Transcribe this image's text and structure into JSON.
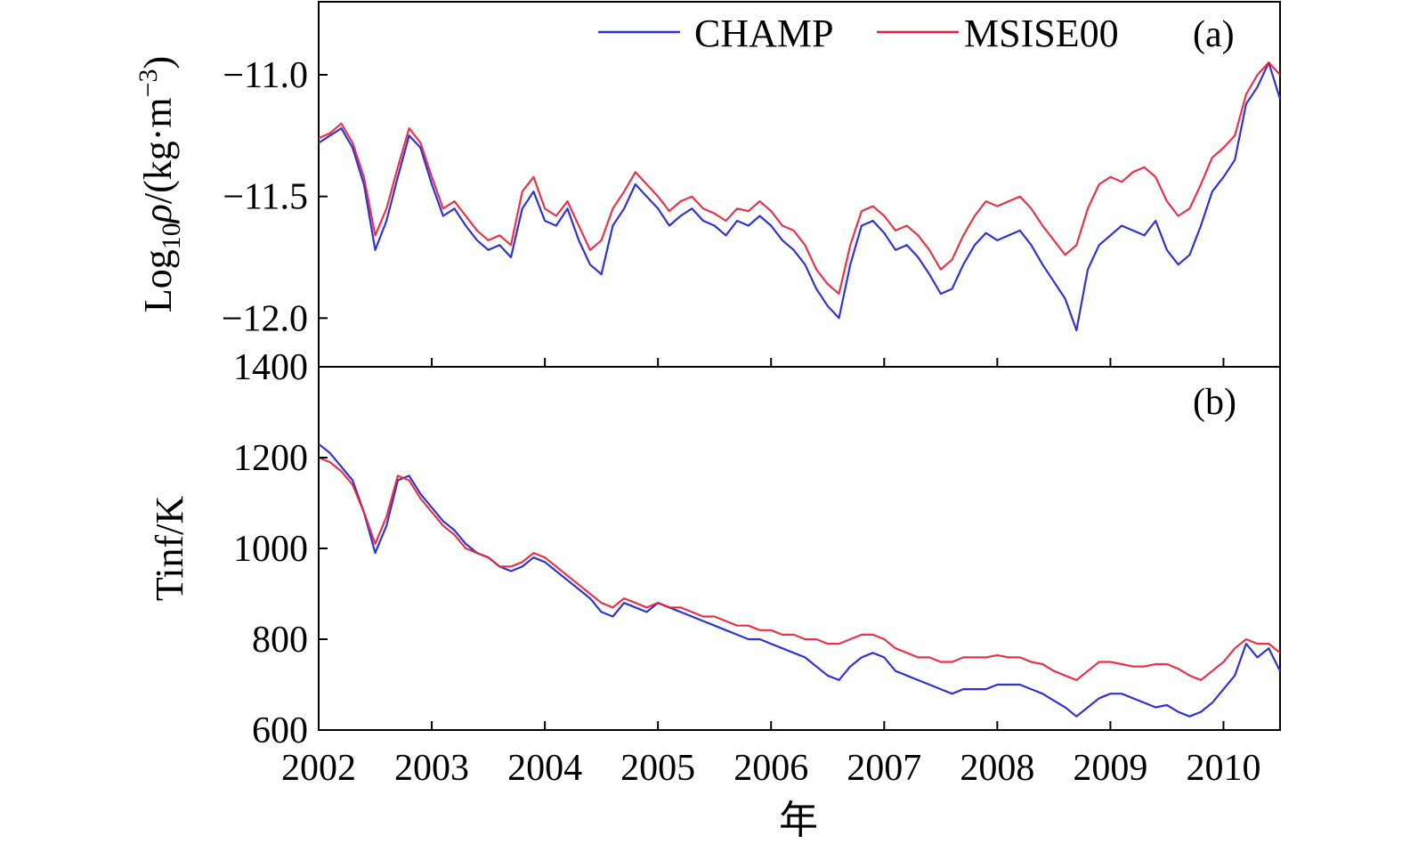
{
  "chart_data": [
    {
      "panel": "(a)",
      "type": "line",
      "ylabel": "Log10ρ/(kg·m−3)",
      "ylabel_parts": {
        "main": "Log",
        "sub": "10",
        "rho": "ρ",
        "unit": "/(kg·m",
        "sup": "−3",
        "close": ")"
      },
      "ylim": [
        -12.2,
        -10.7
      ],
      "yticks": [
        -11.0,
        -11.5,
        -12.0
      ],
      "ytick_labels": [
        "−11.0",
        "−11.5",
        "−12.0"
      ],
      "xlim": [
        2002.0,
        2010.5
      ],
      "legend": {
        "position": "top-right",
        "entries": [
          "CHAMP",
          "MSISE00"
        ]
      },
      "series": [
        {
          "name": "CHAMP",
          "color": "#2f33d6",
          "x": [
            2002.0,
            2002.1,
            2002.2,
            2002.3,
            2002.4,
            2002.5,
            2002.6,
            2002.7,
            2002.8,
            2002.9,
            2003.0,
            2003.1,
            2003.2,
            2003.3,
            2003.4,
            2003.5,
            2003.6,
            2003.7,
            2003.8,
            2003.9,
            2004.0,
            2004.1,
            2004.2,
            2004.3,
            2004.4,
            2004.5,
            2004.6,
            2004.7,
            2004.8,
            2004.9,
            2005.0,
            2005.1,
            2005.2,
            2005.3,
            2005.4,
            2005.5,
            2005.6,
            2005.7,
            2005.8,
            2005.9,
            2006.0,
            2006.1,
            2006.2,
            2006.3,
            2006.4,
            2006.5,
            2006.6,
            2006.7,
            2006.8,
            2006.9,
            2007.0,
            2007.1,
            2007.2,
            2007.3,
            2007.4,
            2007.5,
            2007.6,
            2007.7,
            2007.8,
            2007.9,
            2008.0,
            2008.1,
            2008.2,
            2008.3,
            2008.4,
            2008.5,
            2008.6,
            2008.7,
            2008.8,
            2008.9,
            2009.0,
            2009.1,
            2009.2,
            2009.3,
            2009.4,
            2009.5,
            2009.6,
            2009.7,
            2009.8,
            2009.9,
            2010.0,
            2010.1,
            2010.2,
            2010.3,
            2010.4,
            2010.5
          ],
          "y": [
            -11.28,
            -11.25,
            -11.22,
            -11.3,
            -11.45,
            -11.72,
            -11.6,
            -11.42,
            -11.25,
            -11.3,
            -11.45,
            -11.58,
            -11.55,
            -11.62,
            -11.68,
            -11.72,
            -11.7,
            -11.75,
            -11.55,
            -11.48,
            -11.6,
            -11.62,
            -11.55,
            -11.68,
            -11.78,
            -11.82,
            -11.62,
            -11.55,
            -11.45,
            -11.5,
            -11.55,
            -11.62,
            -11.58,
            -11.55,
            -11.6,
            -11.62,
            -11.66,
            -11.6,
            -11.62,
            -11.58,
            -11.62,
            -11.68,
            -11.72,
            -11.78,
            -11.88,
            -11.95,
            -12.0,
            -11.78,
            -11.62,
            -11.6,
            -11.65,
            -11.72,
            -11.7,
            -11.75,
            -11.82,
            -11.9,
            -11.88,
            -11.78,
            -11.7,
            -11.65,
            -11.68,
            -11.66,
            -11.64,
            -11.7,
            -11.78,
            -11.85,
            -11.92,
            -12.05,
            -11.8,
            -11.7,
            -11.66,
            -11.62,
            -11.64,
            -11.66,
            -11.6,
            -11.72,
            -11.78,
            -11.74,
            -11.62,
            -11.48,
            -11.42,
            -11.35,
            -11.12,
            -11.05,
            -10.95,
            -11.1
          ]
        },
        {
          "name": "MSISE00",
          "color": "#e8213a",
          "x": [
            2002.0,
            2002.1,
            2002.2,
            2002.3,
            2002.4,
            2002.5,
            2002.6,
            2002.7,
            2002.8,
            2002.9,
            2003.0,
            2003.1,
            2003.2,
            2003.3,
            2003.4,
            2003.5,
            2003.6,
            2003.7,
            2003.8,
            2003.9,
            2004.0,
            2004.1,
            2004.2,
            2004.3,
            2004.4,
            2004.5,
            2004.6,
            2004.7,
            2004.8,
            2004.9,
            2005.0,
            2005.1,
            2005.2,
            2005.3,
            2005.4,
            2005.5,
            2005.6,
            2005.7,
            2005.8,
            2005.9,
            2006.0,
            2006.1,
            2006.2,
            2006.3,
            2006.4,
            2006.5,
            2006.6,
            2006.7,
            2006.8,
            2006.9,
            2007.0,
            2007.1,
            2007.2,
            2007.3,
            2007.4,
            2007.5,
            2007.6,
            2007.7,
            2007.8,
            2007.9,
            2008.0,
            2008.1,
            2008.2,
            2008.3,
            2008.4,
            2008.5,
            2008.6,
            2008.7,
            2008.8,
            2008.9,
            2009.0,
            2009.1,
            2009.2,
            2009.3,
            2009.4,
            2009.5,
            2009.6,
            2009.7,
            2009.8,
            2009.9,
            2010.0,
            2010.1,
            2010.2,
            2010.3,
            2010.4,
            2010.5
          ],
          "y": [
            -11.26,
            -11.24,
            -11.2,
            -11.28,
            -11.42,
            -11.66,
            -11.55,
            -11.38,
            -11.22,
            -11.28,
            -11.42,
            -11.55,
            -11.52,
            -11.58,
            -11.64,
            -11.68,
            -11.66,
            -11.7,
            -11.48,
            -11.42,
            -11.55,
            -11.58,
            -11.52,
            -11.62,
            -11.72,
            -11.68,
            -11.55,
            -11.48,
            -11.4,
            -11.45,
            -11.5,
            -11.56,
            -11.52,
            -11.5,
            -11.55,
            -11.57,
            -11.6,
            -11.55,
            -11.56,
            -11.52,
            -11.56,
            -11.62,
            -11.64,
            -11.7,
            -11.8,
            -11.86,
            -11.9,
            -11.7,
            -11.56,
            -11.54,
            -11.58,
            -11.64,
            -11.62,
            -11.66,
            -11.72,
            -11.8,
            -11.76,
            -11.66,
            -11.58,
            -11.52,
            -11.54,
            -11.52,
            -11.5,
            -11.55,
            -11.62,
            -11.68,
            -11.74,
            -11.7,
            -11.55,
            -11.45,
            -11.42,
            -11.44,
            -11.4,
            -11.38,
            -11.42,
            -11.52,
            -11.58,
            -11.55,
            -11.45,
            -11.34,
            -11.3,
            -11.25,
            -11.08,
            -11.0,
            -10.95,
            -11.0
          ]
        }
      ]
    },
    {
      "panel": "(b)",
      "type": "line",
      "ylabel": "Tinf/K",
      "xlabel": "年",
      "ylim": [
        600,
        1400
      ],
      "yticks": [
        600,
        800,
        1000,
        1200,
        1400
      ],
      "ytick_labels": [
        "600",
        "800",
        "1000",
        "1200",
        "1400"
      ],
      "xlim": [
        2002.0,
        2010.5
      ],
      "xticks": [
        2002,
        2003,
        2004,
        2005,
        2006,
        2007,
        2008,
        2009,
        2010
      ],
      "xtick_labels": [
        "2002",
        "2003",
        "2004",
        "2005",
        "2006",
        "2007",
        "2008",
        "2009",
        "2010"
      ],
      "series": [
        {
          "name": "CHAMP",
          "color": "#2f33d6",
          "x": [
            2002.0,
            2002.1,
            2002.2,
            2002.3,
            2002.4,
            2002.5,
            2002.6,
            2002.7,
            2002.8,
            2002.9,
            2003.0,
            2003.1,
            2003.2,
            2003.3,
            2003.4,
            2003.5,
            2003.6,
            2003.7,
            2003.8,
            2003.9,
            2004.0,
            2004.1,
            2004.2,
            2004.3,
            2004.4,
            2004.5,
            2004.6,
            2004.7,
            2004.8,
            2004.9,
            2005.0,
            2005.1,
            2005.2,
            2005.3,
            2005.4,
            2005.5,
            2005.6,
            2005.7,
            2005.8,
            2005.9,
            2006.0,
            2006.1,
            2006.2,
            2006.3,
            2006.4,
            2006.5,
            2006.6,
            2006.7,
            2006.8,
            2006.9,
            2007.0,
            2007.1,
            2007.2,
            2007.3,
            2007.4,
            2007.5,
            2007.6,
            2007.7,
            2007.8,
            2007.9,
            2008.0,
            2008.1,
            2008.2,
            2008.3,
            2008.4,
            2008.5,
            2008.6,
            2008.7,
            2008.8,
            2008.9,
            2009.0,
            2009.1,
            2009.2,
            2009.3,
            2009.4,
            2009.5,
            2009.6,
            2009.7,
            2009.8,
            2009.9,
            2010.0,
            2010.1,
            2010.2,
            2010.3,
            2010.4,
            2010.5
          ],
          "y": [
            1230,
            1210,
            1180,
            1150,
            1080,
            990,
            1050,
            1150,
            1160,
            1120,
            1090,
            1060,
            1040,
            1010,
            990,
            980,
            960,
            950,
            960,
            980,
            970,
            950,
            930,
            910,
            890,
            860,
            850,
            880,
            870,
            860,
            880,
            870,
            860,
            850,
            840,
            830,
            820,
            810,
            800,
            800,
            790,
            780,
            770,
            760,
            740,
            720,
            710,
            740,
            760,
            770,
            760,
            730,
            720,
            710,
            700,
            690,
            680,
            690,
            690,
            690,
            700,
            700,
            700,
            690,
            680,
            665,
            650,
            630,
            650,
            670,
            680,
            680,
            670,
            660,
            650,
            655,
            640,
            630,
            640,
            660,
            690,
            720,
            790,
            760,
            780,
            730
          ]
        },
        {
          "name": "MSISE00",
          "color": "#e8213a",
          "x": [
            2002.0,
            2002.1,
            2002.2,
            2002.3,
            2002.4,
            2002.5,
            2002.6,
            2002.7,
            2002.8,
            2002.9,
            2003.0,
            2003.1,
            2003.2,
            2003.3,
            2003.4,
            2003.5,
            2003.6,
            2003.7,
            2003.8,
            2003.9,
            2004.0,
            2004.1,
            2004.2,
            2004.3,
            2004.4,
            2004.5,
            2004.6,
            2004.7,
            2004.8,
            2004.9,
            2005.0,
            2005.1,
            2005.2,
            2005.3,
            2005.4,
            2005.5,
            2005.6,
            2005.7,
            2005.8,
            2005.9,
            2006.0,
            2006.1,
            2006.2,
            2006.3,
            2006.4,
            2006.5,
            2006.6,
            2006.7,
            2006.8,
            2006.9,
            2007.0,
            2007.1,
            2007.2,
            2007.3,
            2007.4,
            2007.5,
            2007.6,
            2007.7,
            2007.8,
            2007.9,
            2008.0,
            2008.1,
            2008.2,
            2008.3,
            2008.4,
            2008.5,
            2008.6,
            2008.7,
            2008.8,
            2008.9,
            2009.0,
            2009.1,
            2009.2,
            2009.3,
            2009.4,
            2009.5,
            2009.6,
            2009.7,
            2009.8,
            2009.9,
            2010.0,
            2010.1,
            2010.2,
            2010.3,
            2010.4,
            2010.5
          ],
          "y": [
            1200,
            1190,
            1170,
            1140,
            1080,
            1010,
            1070,
            1160,
            1150,
            1110,
            1080,
            1050,
            1030,
            1000,
            990,
            980,
            960,
            960,
            970,
            990,
            980,
            960,
            940,
            920,
            900,
            880,
            870,
            890,
            880,
            870,
            880,
            870,
            870,
            860,
            850,
            850,
            840,
            830,
            830,
            820,
            820,
            810,
            810,
            800,
            800,
            790,
            790,
            800,
            810,
            810,
            800,
            780,
            770,
            760,
            760,
            750,
            750,
            760,
            760,
            760,
            765,
            760,
            760,
            750,
            745,
            730,
            720,
            710,
            730,
            750,
            750,
            745,
            740,
            740,
            745,
            745,
            735,
            720,
            710,
            730,
            750,
            780,
            800,
            790,
            790,
            770
          ]
        }
      ]
    }
  ]
}
